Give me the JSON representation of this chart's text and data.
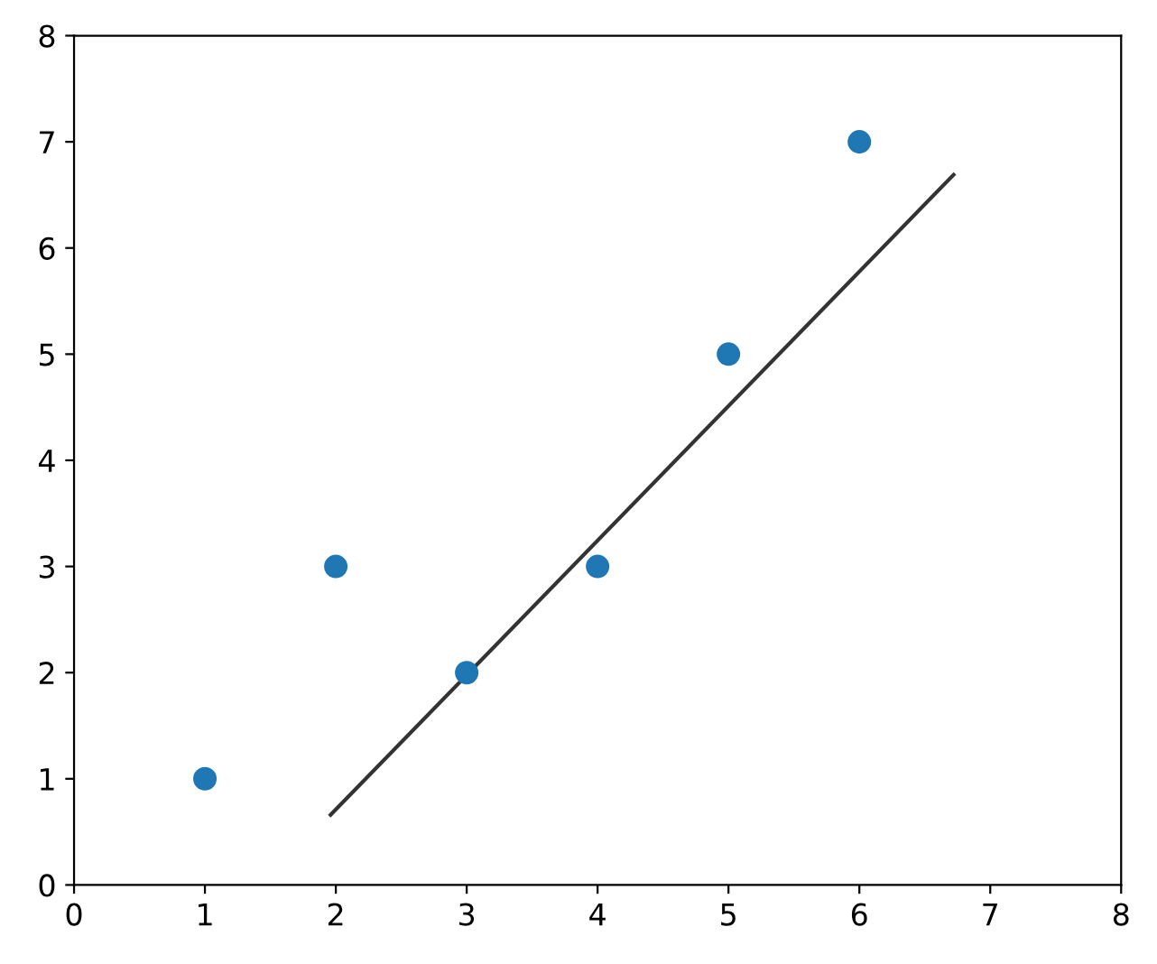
{
  "chart_data": {
    "type": "scatter",
    "xlim": [
      0,
      8
    ],
    "ylim": [
      0,
      8
    ],
    "xticks": [
      0,
      1,
      2,
      3,
      4,
      5,
      6,
      7,
      8
    ],
    "yticks": [
      0,
      1,
      2,
      3,
      4,
      5,
      6,
      7,
      8
    ],
    "grid": false,
    "legend": false,
    "series": [
      {
        "color": "#1f77b4",
        "x": [
          1,
          2,
          3,
          4,
          5,
          6
        ],
        "values": [
          1,
          3,
          2,
          3,
          5,
          7
        ],
        "marker": "circle"
      },
      {
        "type": "line",
        "color": "#333333",
        "x": [
          1.96,
          6.72
        ],
        "values": [
          0.66,
          6.69
        ],
        "line_style": "solid"
      }
    ]
  }
}
